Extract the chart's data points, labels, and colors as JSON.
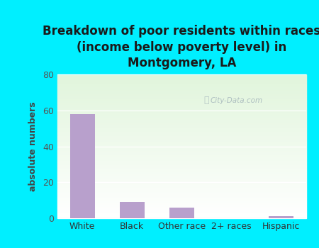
{
  "title": "Breakdown of poor residents within races\n(income below poverty level) in\nMontgomery, LA",
  "categories": [
    "White",
    "Black",
    "Other race",
    "2+ races",
    "Hispanic"
  ],
  "values": [
    58,
    9,
    6,
    0,
    1
  ],
  "bar_color": "#b8a0cc",
  "ylabel": "absolute numbers",
  "ylim": [
    0,
    80
  ],
  "yticks": [
    0,
    20,
    40,
    60,
    80
  ],
  "background_color": "#00efff",
  "title_fontsize": 12,
  "axis_fontsize": 9,
  "tick_fontsize": 9,
  "watermark": "City-Data.com"
}
